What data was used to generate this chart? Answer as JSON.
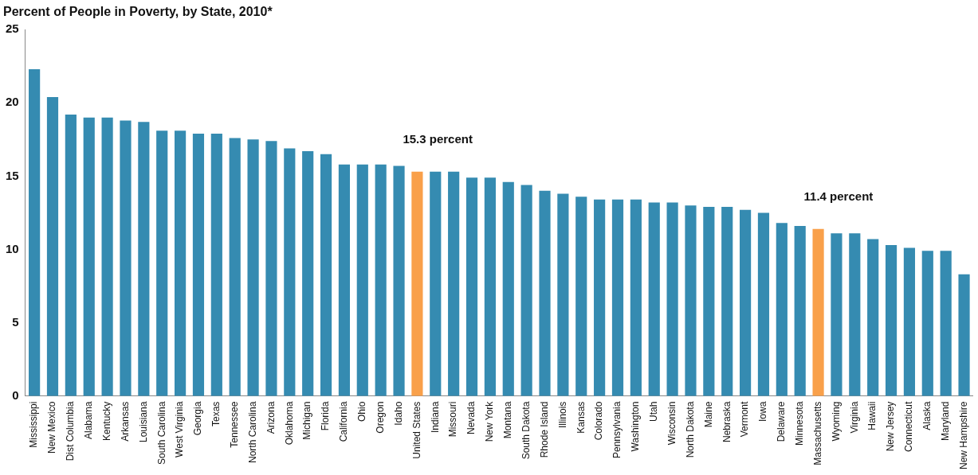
{
  "chart_data": {
    "type": "bar",
    "title": "Percent of People in Poverty, by State, 2010*",
    "categories": [
      "Mississippi",
      "New Mexico",
      "Dist Columbia",
      "Alabama",
      "Kentucky",
      "Arkansas",
      "Louisiana",
      "South Carolina",
      "West Virginia",
      "Georgia",
      "Texas",
      "Tennessee",
      "North Carolina",
      "Arizona",
      "Oklahoma",
      "Michigan",
      "Florida",
      "California",
      "Ohio",
      "Oregon",
      "Idaho",
      "United States",
      "Indiana",
      "Missouri",
      "Nevada",
      "New York",
      "Montana",
      "South Dakota",
      "Rhode Island",
      "Illinois",
      "Kansas",
      "Colorado",
      "Pennsylvania",
      "Washington",
      "Utah",
      "Wisconsin",
      "North Dakota",
      "Maine",
      "Nebraska",
      "Vermont",
      "Iowa",
      "Delaware",
      "Minnesota",
      "Massachusetts",
      "Wyoming",
      "Virginia",
      "Hawaii",
      "New Jersey",
      "Connecticut",
      "Alaska",
      "Maryland",
      "New Hampshire"
    ],
    "values": [
      22.3,
      20.4,
      19.2,
      19.0,
      19.0,
      18.8,
      18.7,
      18.1,
      18.1,
      17.9,
      17.9,
      17.6,
      17.5,
      17.4,
      16.9,
      16.7,
      16.5,
      15.8,
      15.8,
      15.8,
      15.7,
      15.3,
      15.3,
      15.3,
      14.9,
      14.9,
      14.6,
      14.4,
      14.0,
      13.8,
      13.6,
      13.4,
      13.4,
      13.4,
      13.2,
      13.2,
      13.0,
      12.9,
      12.9,
      12.7,
      12.5,
      11.8,
      11.6,
      11.4,
      11.1,
      11.1,
      10.7,
      10.3,
      10.1,
      9.9,
      9.9,
      8.3
    ],
    "colors": [
      "#358bb1",
      "#358bb1",
      "#358bb1",
      "#358bb1",
      "#358bb1",
      "#358bb1",
      "#358bb1",
      "#358bb1",
      "#358bb1",
      "#358bb1",
      "#358bb1",
      "#358bb1",
      "#358bb1",
      "#358bb1",
      "#358bb1",
      "#358bb1",
      "#358bb1",
      "#358bb1",
      "#358bb1",
      "#358bb1",
      "#358bb1",
      "#f9a04a",
      "#358bb1",
      "#358bb1",
      "#358bb1",
      "#358bb1",
      "#358bb1",
      "#358bb1",
      "#358bb1",
      "#358bb1",
      "#358bb1",
      "#358bb1",
      "#358bb1",
      "#358bb1",
      "#358bb1",
      "#358bb1",
      "#358bb1",
      "#358bb1",
      "#358bb1",
      "#358bb1",
      "#358bb1",
      "#358bb1",
      "#358bb1",
      "#f9a04a",
      "#358bb1",
      "#358bb1",
      "#358bb1",
      "#358bb1",
      "#358bb1",
      "#358bb1",
      "#358bb1",
      "#358bb1"
    ],
    "ylim": [
      0,
      25
    ],
    "yticks": [
      0,
      5,
      10,
      15,
      20,
      25
    ],
    "grid": false,
    "legend": false,
    "annotations": [
      {
        "text": "15.3 percent",
        "x": "United States",
        "y": 15.3
      },
      {
        "text": "11.4 percent",
        "x": "Massachusetts",
        "y": 11.4
      }
    ]
  }
}
